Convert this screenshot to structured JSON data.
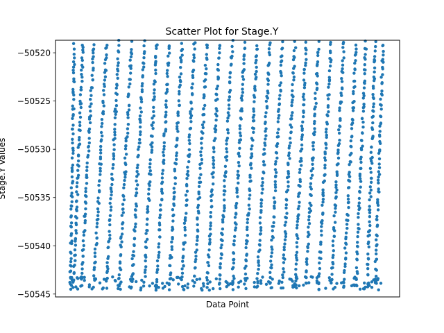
{
  "chart_data": {
    "type": "scatter",
    "title": "Scatter Plot for Stage.Y",
    "xlabel": "Data Point",
    "ylabel": "Stage.Y Values",
    "xlim": [
      -95,
      2095
    ],
    "ylim": [
      -50545.3,
      -50518.7
    ],
    "yticks": [
      -50520,
      -50525,
      -50530,
      -50535,
      -50540,
      -50545
    ],
    "ytick_labels": [
      "−50520",
      "−50525",
      "−50530",
      "−50535",
      "−50540",
      "−50545"
    ],
    "grid": false,
    "legend": "none",
    "color": "#1f77b4",
    "x_range": [
      0,
      2000
    ],
    "series": [
      {
        "values_by_segment": [
          {
            "x_start": 0,
            "x_end": 25,
            "y_start": -50544.0,
            "y_end": -50519.2
          },
          {
            "x_start": 20,
            "x_end": 80,
            "y_start": -50544.2,
            "y_end": -50519.0
          },
          {
            "x_start": 70,
            "x_end": 150,
            "y_start": -50544.1,
            "y_end": -50519.0
          },
          {
            "x_start": 150,
            "x_end": 230,
            "y_start": -50544.0,
            "y_end": -50519.0
          },
          {
            "x_start": 230,
            "x_end": 310,
            "y_start": -50544.1,
            "y_end": -50519.0
          },
          {
            "x_start": 310,
            "x_end": 390,
            "y_start": -50544.0,
            "y_end": -50519.0
          },
          {
            "x_start": 390,
            "x_end": 470,
            "y_start": -50544.1,
            "y_end": -50519.0
          },
          {
            "x_start": 470,
            "x_end": 550,
            "y_start": -50544.0,
            "y_end": -50519.0
          },
          {
            "x_start": 550,
            "x_end": 630,
            "y_start": -50544.1,
            "y_end": -50519.0
          },
          {
            "x_start": 630,
            "x_end": 710,
            "y_start": -50544.0,
            "y_end": -50519.0
          },
          {
            "x_start": 710,
            "x_end": 790,
            "y_start": -50544.1,
            "y_end": -50519.0
          },
          {
            "x_start": 790,
            "x_end": 870,
            "y_start": -50544.0,
            "y_end": -50519.0
          },
          {
            "x_start": 870,
            "x_end": 950,
            "y_start": -50544.1,
            "y_end": -50519.0
          },
          {
            "x_start": 950,
            "x_end": 1030,
            "y_start": -50544.0,
            "y_end": -50519.0
          },
          {
            "x_start": 1030,
            "x_end": 1110,
            "y_start": -50544.1,
            "y_end": -50519.0
          },
          {
            "x_start": 1110,
            "x_end": 1190,
            "y_start": -50544.0,
            "y_end": -50519.0
          },
          {
            "x_start": 1190,
            "x_end": 1270,
            "y_start": -50544.1,
            "y_end": -50519.0
          },
          {
            "x_start": 1270,
            "x_end": 1350,
            "y_start": -50544.0,
            "y_end": -50519.0
          },
          {
            "x_start": 1350,
            "x_end": 1430,
            "y_start": -50544.1,
            "y_end": -50519.0
          },
          {
            "x_start": 1430,
            "x_end": 1500,
            "y_start": -50544.2,
            "y_end": -50519.0
          },
          {
            "x_start": 1500,
            "x_end": 1580,
            "y_start": -50544.0,
            "y_end": -50519.0
          },
          {
            "x_start": 1580,
            "x_end": 1660,
            "y_start": -50544.1,
            "y_end": -50519.0
          },
          {
            "x_start": 1660,
            "x_end": 1740,
            "y_start": -50544.0,
            "y_end": -50519.0
          },
          {
            "x_start": 1740,
            "x_end": 1820,
            "y_start": -50544.1,
            "y_end": -50519.0
          },
          {
            "x_start": 1820,
            "x_end": 1880,
            "y_start": -50544.2,
            "y_end": -50519.0
          },
          {
            "x_start": 1890,
            "x_end": 1940,
            "y_start": -50544.0,
            "y_end": -50519.0
          },
          {
            "x_start": 1940,
            "x_end": 1990,
            "y_start": -50544.1,
            "y_end": -50519.0
          }
        ]
      }
    ]
  }
}
